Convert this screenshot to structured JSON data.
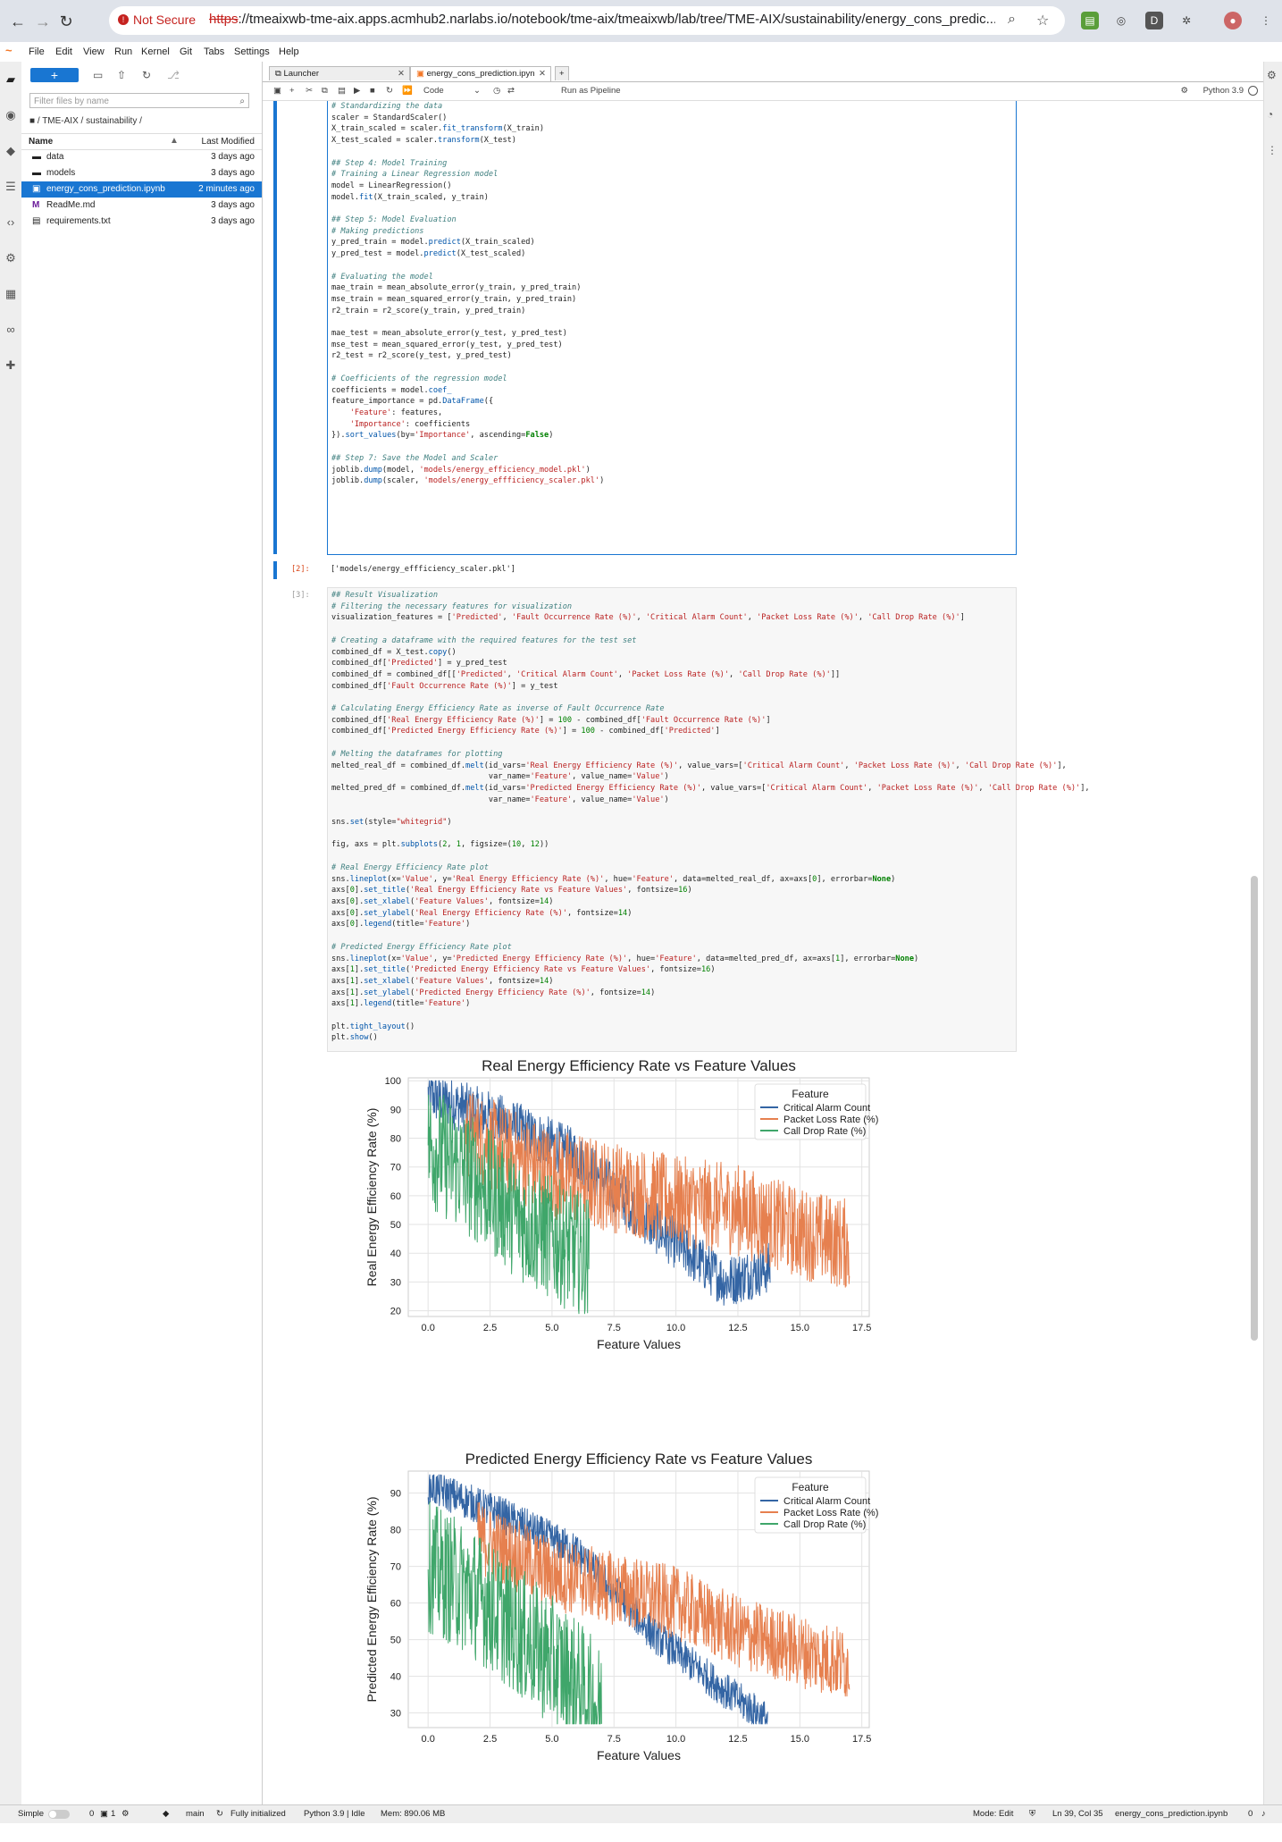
{
  "browser": {
    "security_label": "Not Secure",
    "url_scheme": "https",
    "url_rest": "://tmeaixwb-tme-aix.apps.acmhub2.narlabs.io/notebook/tme-aix/tmeaixwb/lab/tree/TME-AIX/sustainability/energy_cons_predic..."
  },
  "menu": [
    "File",
    "Edit",
    "View",
    "Run",
    "Kernel",
    "Git",
    "Tabs",
    "Settings",
    "Help"
  ],
  "filebrowser": {
    "new_label": "+",
    "filter_placeholder": "Filter files by name",
    "breadcrumb": "■ / TME-AIX / sustainability /",
    "col_name": "Name",
    "col_modified": "Last Modified",
    "files": [
      {
        "name": "data",
        "modified": "3 days ago",
        "icon": "▬"
      },
      {
        "name": "models",
        "modified": "3 days ago",
        "icon": "▬"
      },
      {
        "name": "energy_cons_prediction.ipynb",
        "modified": "2 minutes ago",
        "icon": "▣"
      },
      {
        "name": "ReadMe.md",
        "modified": "3 days ago",
        "icon": "M"
      },
      {
        "name": "requirements.txt",
        "modified": "3 days ago",
        "icon": "▤"
      }
    ]
  },
  "tabs": [
    {
      "label": "Launcher"
    },
    {
      "label": "energy_cons_prediction.ipyn"
    }
  ],
  "toolbar": {
    "cell_type": "Code",
    "run_pipeline": "Run as Pipeline",
    "kernel": "Python 3.9"
  },
  "cell2": {
    "prompt": "[2]:",
    "output": "['models/energy_effficiency_scaler.pkl']"
  },
  "cell3": {
    "prompt": "[3]:"
  },
  "status": {
    "mode_simple": "Simple",
    "counts": "0",
    "terminals": "1",
    "branch": "main",
    "init": "Fully initialized",
    "kernel": "Python 3.9 | Idle",
    "mem": "Mem: 890.06 MB",
    "mode": "Mode: Edit",
    "position": "Ln 39, Col 35",
    "filename": "energy_cons_prediction.ipynb",
    "notifications": "0"
  },
  "colors": {
    "blue": "#3465a4",
    "orange": "#e6804f",
    "green": "#3fa66a",
    "accent": "#1976d2"
  },
  "chart_data": [
    {
      "type": "line",
      "title": "Real Energy Efficiency Rate vs Feature Values",
      "xlabel": "Feature Values",
      "ylabel": "Real Energy Efficiency Rate (%)",
      "xlim": [
        -0.8,
        17.8
      ],
      "ylim": [
        18,
        101
      ],
      "xticks": [
        "0.0",
        "2.5",
        "5.0",
        "7.5",
        "10.0",
        "12.5",
        "15.0",
        "17.5"
      ],
      "yticks": [
        "20",
        "30",
        "40",
        "50",
        "60",
        "70",
        "80",
        "90",
        "100"
      ],
      "legend_title": "Feature",
      "legend_position": "top-right",
      "grid": true,
      "series": [
        {
          "name": "Critical Alarm Count",
          "color": "#3465a4",
          "x_range": [
            0,
            13.8
          ],
          "trend": [
            [
              0,
              95
            ],
            [
              3,
              86
            ],
            [
              6,
              74
            ],
            [
              9,
              50
            ],
            [
              12,
              30
            ],
            [
              13.8,
              35
            ]
          ],
          "noise": 9
        },
        {
          "name": "Packet Loss Rate (%)",
          "color": "#e6804f",
          "x_range": [
            1.5,
            17
          ],
          "trend": [
            [
              1.5,
              82
            ],
            [
              5,
              68
            ],
            [
              10,
              58
            ],
            [
              12.5,
              55
            ],
            [
              15,
              47
            ],
            [
              17,
              43
            ]
          ],
          "noise": 16
        },
        {
          "name": "Call Drop Rate (%)",
          "color": "#3fa66a",
          "x_range": [
            0,
            6.5
          ],
          "trend": [
            [
              0,
              78
            ],
            [
              2,
              65
            ],
            [
              4,
              50
            ],
            [
              6.5,
              38
            ]
          ],
          "noise": 22
        }
      ]
    },
    {
      "type": "line",
      "title": "Predicted Energy Efficiency Rate vs Feature Values",
      "xlabel": "Feature Values",
      "ylabel": "Predicted Energy Efficiency Rate (%)",
      "xlim": [
        -0.8,
        17.8
      ],
      "ylim": [
        26,
        96
      ],
      "xticks": [
        "0.0",
        "2.5",
        "5.0",
        "7.5",
        "10.0",
        "12.5",
        "15.0",
        "17.5"
      ],
      "yticks": [
        "30",
        "40",
        "50",
        "60",
        "70",
        "80",
        "90"
      ],
      "legend_title": "Feature",
      "legend_position": "top-right",
      "grid": true,
      "series": [
        {
          "name": "Critical Alarm Count",
          "color": "#3465a4",
          "x_range": [
            0,
            13.7
          ],
          "trend": [
            [
              0,
              92
            ],
            [
              3,
              84
            ],
            [
              6,
              74
            ],
            [
              9,
              52
            ],
            [
              12,
              36
            ],
            [
              13.7,
              28
            ]
          ],
          "noise": 5
        },
        {
          "name": "Packet Loss Rate (%)",
          "color": "#e6804f",
          "x_range": [
            2,
            17
          ],
          "trend": [
            [
              2,
              78
            ],
            [
              5,
              68
            ],
            [
              10,
              60
            ],
            [
              12.5,
              52
            ],
            [
              15,
              47
            ],
            [
              17,
              43
            ]
          ],
          "noise": 10
        },
        {
          "name": "Call Drop Rate (%)",
          "color": "#3fa66a",
          "x_range": [
            0,
            7
          ],
          "trend": [
            [
              0,
              70
            ],
            [
              2,
              62
            ],
            [
              4,
              50
            ],
            [
              6,
              38
            ],
            [
              7,
              30
            ]
          ],
          "noise": 18
        }
      ]
    }
  ]
}
